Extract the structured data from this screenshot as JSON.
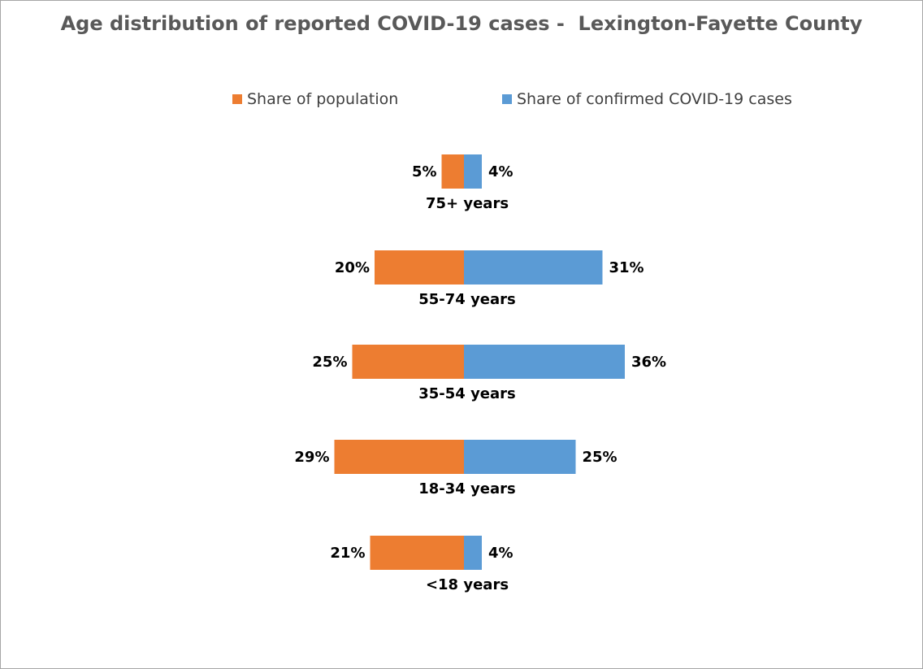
{
  "chart_data": {
    "type": "bar",
    "orientation": "horizontal-diverging",
    "title": "Age distribution of reported COVID-19 cases -  Lexington-Fayette County",
    "categories": [
      "75+ years",
      "55-74 years",
      "35-54 years",
      "18-34 years",
      "<18 years"
    ],
    "series": [
      {
        "name": "Share of population",
        "color": "#ed7d31",
        "side": "left",
        "values": [
          5,
          20,
          25,
          29,
          21
        ],
        "labels": [
          "5%",
          "20%",
          "25%",
          "29%",
          "21%"
        ]
      },
      {
        "name": "Share of confirmed COVID-19 cases",
        "color": "#5b9bd5",
        "side": "right",
        "values": [
          4,
          31,
          36,
          25,
          4
        ],
        "labels": [
          "4%",
          "31%",
          "36%",
          "25%",
          "4%"
        ]
      }
    ],
    "unit": "%",
    "legend": "top",
    "grid": false,
    "border_color": "#a6a6a6"
  }
}
